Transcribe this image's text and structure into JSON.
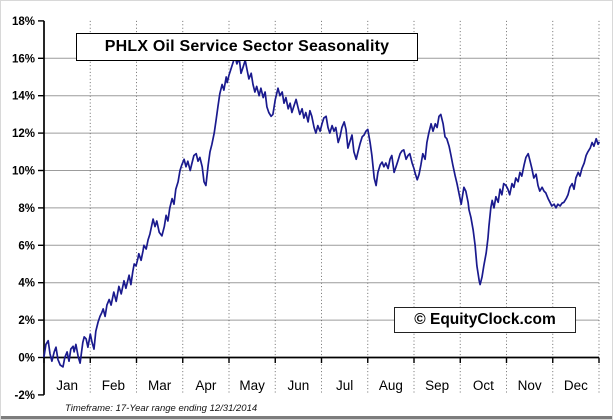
{
  "page": {
    "title_box": "PHLX Oil Service Sector Seasonality",
    "watermark": "© EquityClock.com",
    "footnote": "Timeframe: 17-Year range ending 12/31/2014"
  },
  "colors": {
    "line": "#1a1a8e",
    "grid": "#9c9c9c",
    "month_grid": "#6e6e6e",
    "axis": "#000000",
    "bottom_bar": "#7d7d7d"
  },
  "chart_data": {
    "type": "line",
    "title": "PHLX Oil Service Sector Seasonality",
    "xlabel": "",
    "ylabel": "",
    "categories": [
      "Jan",
      "Feb",
      "Mar",
      "Apr",
      "May",
      "Jun",
      "Jul",
      "Aug",
      "Sep",
      "Oct",
      "Nov",
      "Dec"
    ],
    "y_ticks": [
      18,
      16,
      14,
      12,
      10,
      8,
      6,
      4,
      2,
      0,
      -2
    ],
    "y_tick_suffix": "%",
    "ylim": [
      -2,
      18
    ],
    "xlim_months": [
      0,
      12
    ],
    "grid": true,
    "x_axis_at_value": 0,
    "points": [
      [
        0,
        0.05
      ],
      [
        0.04,
        0.7
      ],
      [
        0.09,
        0.9
      ],
      [
        0.13,
        0.2
      ],
      [
        0.17,
        -0.2
      ],
      [
        0.22,
        0.3
      ],
      [
        0.26,
        0.55
      ],
      [
        0.3,
        -0.1
      ],
      [
        0.35,
        -0.4
      ],
      [
        0.41,
        -0.5
      ],
      [
        0.45,
        0
      ],
      [
        0.5,
        0.3
      ],
      [
        0.54,
        -0.2
      ],
      [
        0.58,
        0.45
      ],
      [
        0.63,
        0.6
      ],
      [
        0.65,
        0.3
      ],
      [
        0.69,
        0.7
      ],
      [
        0.74,
        0.05
      ],
      [
        0.78,
        -0.3
      ],
      [
        0.84,
        0.8
      ],
      [
        0.87,
        1.1
      ],
      [
        0.91,
        1
      ],
      [
        0.95,
        0.55
      ],
      [
        1,
        1.25
      ],
      [
        1.04,
        0.8
      ],
      [
        1.08,
        0.45
      ],
      [
        1.12,
        1.4
      ],
      [
        1.17,
        1.9
      ],
      [
        1.21,
        2.2
      ],
      [
        1.25,
        2.4
      ],
      [
        1.28,
        2.6
      ],
      [
        1.32,
        2.2
      ],
      [
        1.36,
        2.8
      ],
      [
        1.41,
        3.1
      ],
      [
        1.45,
        2.8
      ],
      [
        1.51,
        3.5
      ],
      [
        1.56,
        3
      ],
      [
        1.62,
        3.8
      ],
      [
        1.67,
        3.4
      ],
      [
        1.73,
        4.1
      ],
      [
        1.77,
        3.7
      ],
      [
        1.84,
        4.4
      ],
      [
        1.88,
        3.9
      ],
      [
        1.92,
        4.6
      ],
      [
        1.95,
        5
      ],
      [
        1.99,
        4.9
      ],
      [
        2.03,
        5.3
      ],
      [
        2.05,
        5.55
      ],
      [
        2.1,
        5.2
      ],
      [
        2.14,
        5.7
      ],
      [
        2.16,
        6
      ],
      [
        2.21,
        5.8
      ],
      [
        2.25,
        6.3
      ],
      [
        2.29,
        6.6
      ],
      [
        2.36,
        7.4
      ],
      [
        2.4,
        7
      ],
      [
        2.44,
        7.3
      ],
      [
        2.49,
        6.7
      ],
      [
        2.55,
        6.5
      ],
      [
        2.6,
        7
      ],
      [
        2.64,
        7.6
      ],
      [
        2.68,
        7.3
      ],
      [
        2.72,
        8
      ],
      [
        2.77,
        8.5
      ],
      [
        2.81,
        8.2
      ],
      [
        2.85,
        9
      ],
      [
        2.9,
        9.4
      ],
      [
        2.94,
        10
      ],
      [
        2.98,
        10.3
      ],
      [
        3.03,
        10.6
      ],
      [
        3.07,
        10.2
      ],
      [
        3.11,
        10.5
      ],
      [
        3.16,
        10
      ],
      [
        3.2,
        10.4
      ],
      [
        3.24,
        10.8
      ],
      [
        3.29,
        10.9
      ],
      [
        3.33,
        10.5
      ],
      [
        3.37,
        10.7
      ],
      [
        3.42,
        10.2
      ],
      [
        3.46,
        9.4
      ],
      [
        3.5,
        9.2
      ],
      [
        3.55,
        10.3
      ],
      [
        3.59,
        11
      ],
      [
        3.63,
        11.4
      ],
      [
        3.68,
        12
      ],
      [
        3.72,
        12.7
      ],
      [
        3.76,
        13.4
      ],
      [
        3.8,
        14.1
      ],
      [
        3.85,
        14.6
      ],
      [
        3.89,
        14.3
      ],
      [
        3.94,
        15
      ],
      [
        3.96,
        14.7
      ],
      [
        4,
        15.1
      ],
      [
        4.04,
        15.4
      ],
      [
        4.09,
        15.8
      ],
      [
        4.13,
        16.1
      ],
      [
        4.17,
        15.7
      ],
      [
        4.22,
        16
      ],
      [
        4.26,
        15.2
      ],
      [
        4.3,
        15.5
      ],
      [
        4.35,
        15.9
      ],
      [
        4.39,
        15.4
      ],
      [
        4.43,
        14.9
      ],
      [
        4.48,
        15.2
      ],
      [
        4.52,
        14.6
      ],
      [
        4.56,
        14.2
      ],
      [
        4.6,
        14.5
      ],
      [
        4.65,
        14
      ],
      [
        4.69,
        14.4
      ],
      [
        4.74,
        13.9
      ],
      [
        4.78,
        14.2
      ],
      [
        4.82,
        13.4
      ],
      [
        4.86,
        13.1
      ],
      [
        4.91,
        12.9
      ],
      [
        4.95,
        13
      ],
      [
        5,
        13.8
      ],
      [
        5.06,
        14.4
      ],
      [
        5.1,
        14
      ],
      [
        5.15,
        14.2
      ],
      [
        5.19,
        13.6
      ],
      [
        5.23,
        13.9
      ],
      [
        5.28,
        13.3
      ],
      [
        5.32,
        13.6
      ],
      [
        5.36,
        13.1
      ],
      [
        5.41,
        13.5
      ],
      [
        5.45,
        13.8
      ],
      [
        5.49,
        13.4
      ],
      [
        5.53,
        13
      ],
      [
        5.58,
        13.3
      ],
      [
        5.62,
        12.8
      ],
      [
        5.66,
        13.1
      ],
      [
        5.71,
        12.6
      ],
      [
        5.75,
        13.2
      ],
      [
        5.79,
        12.9
      ],
      [
        5.84,
        12.3
      ],
      [
        5.88,
        12
      ],
      [
        5.92,
        12.4
      ],
      [
        5.97,
        12.1
      ],
      [
        6.01,
        12.5
      ],
      [
        6.05,
        12.8
      ],
      [
        6.1,
        12.9
      ],
      [
        6.14,
        12.3
      ],
      [
        6.18,
        12
      ],
      [
        6.23,
        12.4
      ],
      [
        6.27,
        12.1
      ],
      [
        6.31,
        12.3
      ],
      [
        6.36,
        11.5
      ],
      [
        6.4,
        11.8
      ],
      [
        6.44,
        12.3
      ],
      [
        6.49,
        12.6
      ],
      [
        6.53,
        12.2
      ],
      [
        6.57,
        11.2
      ],
      [
        6.62,
        11.6
      ],
      [
        6.66,
        11.9
      ],
      [
        6.7,
        11
      ],
      [
        6.75,
        10.6
      ],
      [
        6.79,
        11
      ],
      [
        6.83,
        11.4
      ],
      [
        6.88,
        11.8
      ],
      [
        6.92,
        11.9
      ],
      [
        6.96,
        12.1
      ],
      [
        7,
        12.2
      ],
      [
        7.05,
        11.5
      ],
      [
        7.09,
        10.8
      ],
      [
        7.14,
        9.6
      ],
      [
        7.18,
        9.2
      ],
      [
        7.22,
        9.9
      ],
      [
        7.27,
        10.3
      ],
      [
        7.31,
        10.45
      ],
      [
        7.35,
        10.2
      ],
      [
        7.39,
        10.4
      ],
      [
        7.44,
        10.1
      ],
      [
        7.48,
        10.6
      ],
      [
        7.52,
        10.8
      ],
      [
        7.57,
        9.9
      ],
      [
        7.61,
        10.2
      ],
      [
        7.65,
        10.5
      ],
      [
        7.7,
        10.9
      ],
      [
        7.74,
        11.05
      ],
      [
        7.78,
        11.1
      ],
      [
        7.83,
        10.6
      ],
      [
        7.87,
        10.8
      ],
      [
        7.91,
        10.9
      ],
      [
        7.96,
        10.4
      ],
      [
        8,
        10.1
      ],
      [
        8.02,
        9.9
      ],
      [
        8.07,
        9.5
      ],
      [
        8.11,
        9.8
      ],
      [
        8.15,
        10.3
      ],
      [
        8.19,
        10.9
      ],
      [
        8.24,
        10.6
      ],
      [
        8.28,
        11.5
      ],
      [
        8.32,
        12
      ],
      [
        8.37,
        12.5
      ],
      [
        8.41,
        12.1
      ],
      [
        8.46,
        12.5
      ],
      [
        8.5,
        12.3
      ],
      [
        8.54,
        12.9
      ],
      [
        8.58,
        13
      ],
      [
        8.63,
        12.5
      ],
      [
        8.67,
        11.8
      ],
      [
        8.71,
        11.7
      ],
      [
        8.76,
        11.3
      ],
      [
        8.8,
        10.8
      ],
      [
        8.84,
        10.3
      ],
      [
        8.89,
        9.7
      ],
      [
        8.93,
        9.3
      ],
      [
        8.97,
        8.8
      ],
      [
        9.02,
        8.2
      ],
      [
        9.06,
        8.8
      ],
      [
        9.08,
        9.1
      ],
      [
        9.12,
        8.9
      ],
      [
        9.17,
        8.3
      ],
      [
        9.19,
        7.9
      ],
      [
        9.23,
        7.5
      ],
      [
        9.28,
        6.8
      ],
      [
        9.32,
        6
      ],
      [
        9.36,
        4.9
      ],
      [
        9.41,
        4.1
      ],
      [
        9.43,
        3.9
      ],
      [
        9.47,
        4.3
      ],
      [
        9.51,
        4.9
      ],
      [
        9.56,
        5.6
      ],
      [
        9.6,
        6.4
      ],
      [
        9.62,
        7
      ],
      [
        9.66,
        8
      ],
      [
        9.69,
        8.4
      ],
      [
        9.73,
        8
      ],
      [
        9.77,
        8.6
      ],
      [
        9.82,
        8.3
      ],
      [
        9.86,
        9
      ],
      [
        9.9,
        8.7
      ],
      [
        9.94,
        9.3
      ],
      [
        9.99,
        9.2
      ],
      [
        10.03,
        9
      ],
      [
        10.07,
        8.7
      ],
      [
        10.12,
        9.3
      ],
      [
        10.16,
        9.1
      ],
      [
        10.2,
        9.6
      ],
      [
        10.25,
        9.4
      ],
      [
        10.29,
        9.9
      ],
      [
        10.33,
        9.7
      ],
      [
        10.38,
        10.3
      ],
      [
        10.42,
        10.7
      ],
      [
        10.47,
        10.9
      ],
      [
        10.51,
        10.5
      ],
      [
        10.55,
        10.1
      ],
      [
        10.59,
        9.6
      ],
      [
        10.64,
        9.8
      ],
      [
        10.68,
        9.2
      ],
      [
        10.72,
        8.9
      ],
      [
        10.77,
        9.1
      ],
      [
        10.81,
        8.9
      ],
      [
        10.85,
        8.8
      ],
      [
        10.9,
        8.5
      ],
      [
        10.94,
        8.3
      ],
      [
        10.98,
        8.1
      ],
      [
        11.03,
        8.2
      ],
      [
        11.07,
        8
      ],
      [
        11.11,
        8.2
      ],
      [
        11.16,
        8.1
      ],
      [
        11.2,
        8.25
      ],
      [
        11.24,
        8.3
      ],
      [
        11.29,
        8.5
      ],
      [
        11.33,
        8.7
      ],
      [
        11.37,
        9.1
      ],
      [
        11.42,
        9.3
      ],
      [
        11.46,
        9
      ],
      [
        11.5,
        9.6
      ],
      [
        11.55,
        9.9
      ],
      [
        11.59,
        9.7
      ],
      [
        11.63,
        10.1
      ],
      [
        11.68,
        10.4
      ],
      [
        11.72,
        10.8
      ],
      [
        11.76,
        11
      ],
      [
        11.81,
        11.2
      ],
      [
        11.85,
        11.5
      ],
      [
        11.89,
        11.3
      ],
      [
        11.94,
        11.7
      ],
      [
        11.98,
        11.4
      ],
      [
        12,
        11.5
      ]
    ]
  }
}
